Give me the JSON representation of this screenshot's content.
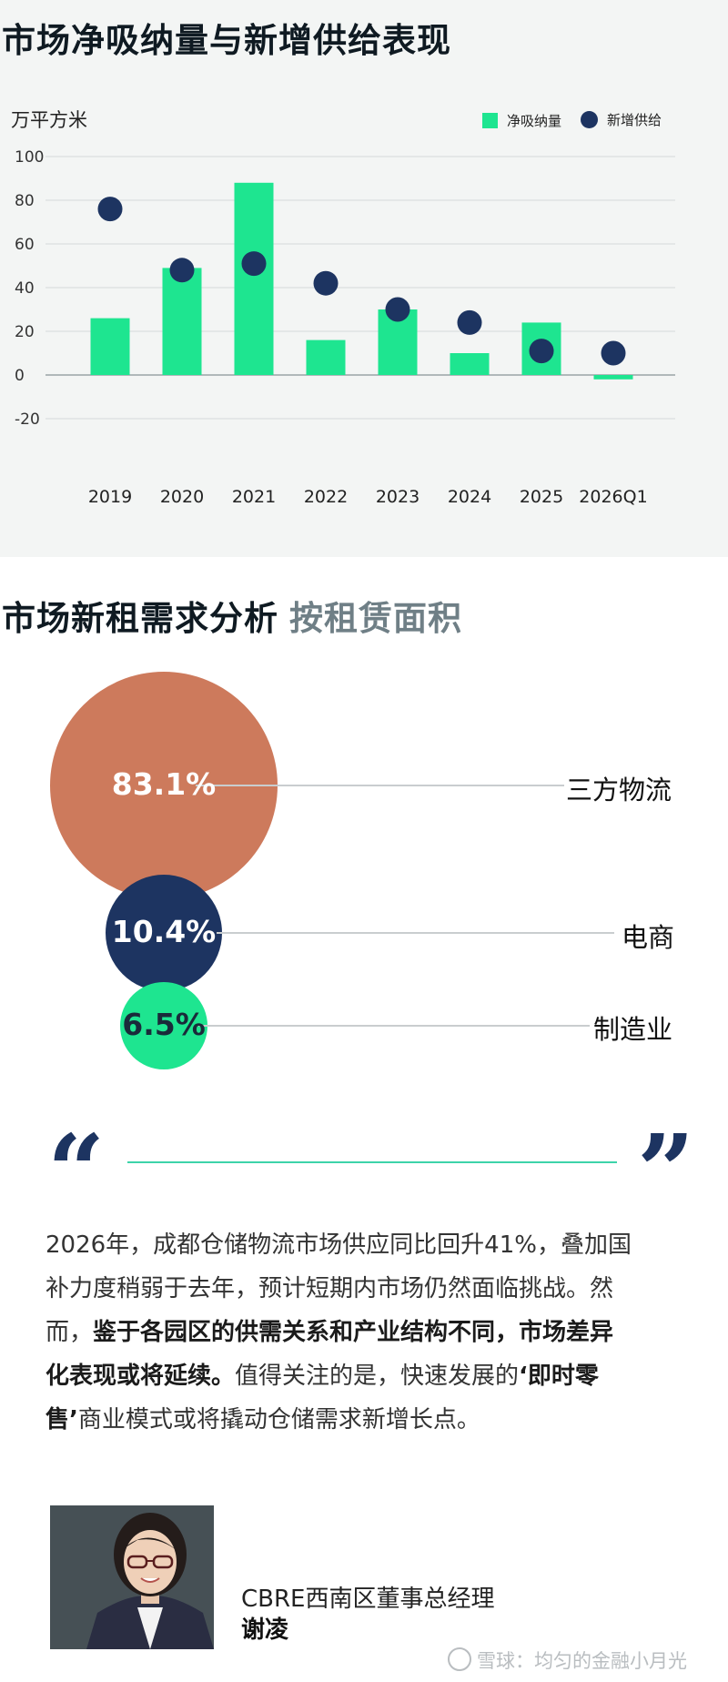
{
  "section1": {
    "title": "市场净吸纳量与新增供给表现"
  },
  "chart_data": {
    "type": "bar",
    "ylabel": "万平方米",
    "ylim": [
      -20,
      100
    ],
    "yticks": [
      100,
      80,
      60,
      40,
      20,
      0,
      -20
    ],
    "grid": true,
    "legend_placement": "top-right",
    "categories": [
      "2019",
      "2020",
      "2021",
      "2022",
      "2023",
      "2024",
      "2025",
      "2026Q1"
    ],
    "series": [
      {
        "name": "净吸纳量",
        "mark": "bar",
        "color": "#1ee590",
        "values": [
          26,
          49,
          88,
          16,
          30,
          10,
          24,
          -2
        ]
      },
      {
        "name": "新增供给",
        "mark": "dot",
        "color": "#1d3461",
        "values": [
          76,
          48,
          51,
          42,
          30,
          24,
          11,
          10
        ]
      }
    ]
  },
  "section2": {
    "title": "市场新租需求分析",
    "subtitle": "按租赁面积",
    "items": [
      {
        "value": "83.1%",
        "label": "三方物流",
        "color": "#cd7a5c"
      },
      {
        "value": "10.4%",
        "label": "电商",
        "color": "#1d3461"
      },
      {
        "value": "6.5%",
        "label": "制造业",
        "color": "#1ee590"
      }
    ]
  },
  "quote": {
    "open_mark": "“",
    "close_mark": "”",
    "line1": "2026年，成都仓储物流市场供应同比回升41%，叠加国",
    "line2": "补力度稍弱于去年，预计短期内市场仍然面临挑战。然",
    "line3_pre": "而，",
    "line3_bold": "鉴于各园区的供需关系和产业结构不同，市场差异",
    "line4_bold": "化表现或将延续。",
    "line4_mid": "值得关注的是，快速发展的",
    "line4_bold2": "‘即时零",
    "line5_bold": "售’",
    "line5_rest": "商业模式或将撬动仓储需求新增长点。"
  },
  "speaker": {
    "title": "CBRE西南区董事总经理",
    "name": "谢凌"
  },
  "watermark": "雪球：均匀的金融小月光"
}
